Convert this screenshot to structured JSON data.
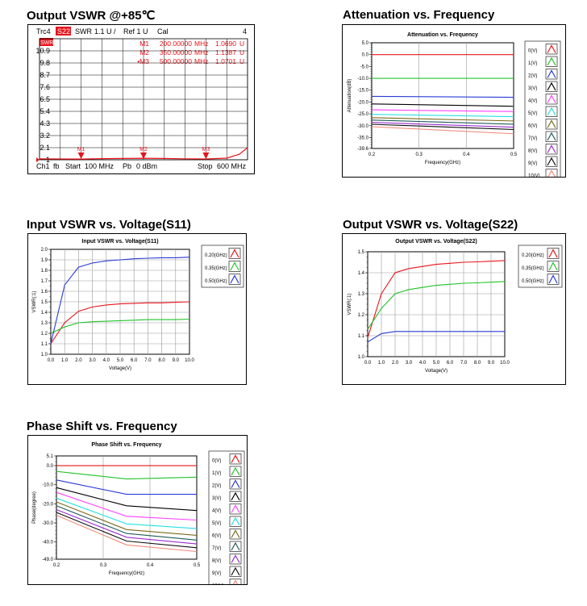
{
  "headings": {
    "vswr85": "Output VSWR @+85℃",
    "atten": "Attenuation vs. Frequency",
    "s11": "Input VSWR vs. Voltage(S11)",
    "s22": "Output VSWR vs. Voltage(S22)",
    "phase": "Phase Shift vs. Frequency"
  },
  "vna": {
    "trace": "Trc4",
    "param": "S22",
    "format": "SWR",
    "scale": "1.1 U /",
    "ref": "Ref 1 U",
    "cal": "Cal",
    "num": "4",
    "marker_table": [
      {
        "name": "M1",
        "freq": "200.00000",
        "unit": "MHz",
        "value": "1.0690",
        "vunit": "U"
      },
      {
        "name": "M2",
        "freq": "350.00000",
        "unit": "MHz",
        "value": "1.1387",
        "vunit": "U"
      },
      {
        "name": "•M3",
        "freq": "500.00000",
        "unit": "MHz",
        "value": "1.0701",
        "vunit": "U"
      }
    ],
    "ref_badge": "SWR",
    "footer": {
      "ch": "Ch1",
      "fb": "fb",
      "start": "Start",
      "start_val": "100 MHz",
      "pb": "Pb",
      "pb_val": "0 dBm",
      "stop": "Stop",
      "stop_val": "600 MHz"
    }
  },
  "chart_data": [
    {
      "id": "vswr85",
      "type": "line",
      "title": "",
      "xlabel": "",
      "ylabel": "",
      "xlim": [
        100,
        600
      ],
      "ylim": [
        1.0,
        12.0
      ],
      "yticks": [
        "10.9",
        "9.8",
        "8.7",
        "7.6",
        "6.5",
        "5.4",
        "4.3",
        "3.2",
        "2.1",
        "1"
      ],
      "ytick_values": [
        10.9,
        9.8,
        8.7,
        7.6,
        6.5,
        5.4,
        4.3,
        3.2,
        2.1,
        1.0
      ],
      "series": [
        {
          "color": "#e8141b",
          "x": [
            100,
            150,
            200,
            250,
            300,
            350,
            400,
            450,
            500,
            550,
            580,
            600
          ],
          "y": [
            1.08,
            1.07,
            1.069,
            1.1,
            1.12,
            1.139,
            1.12,
            1.09,
            1.07,
            1.15,
            1.5,
            2.1
          ]
        }
      ],
      "markers": [
        {
          "label": "M1",
          "x": 200
        },
        {
          "label": "M2",
          "x": 350
        },
        {
          "label": "M3",
          "x": 500
        }
      ]
    },
    {
      "id": "atten",
      "type": "line",
      "title": "Attenuation vs. Frequency",
      "xlabel": "Frequency(GHz)",
      "ylabel": "Attenuation(dB)",
      "xlim": [
        0.2,
        0.5
      ],
      "ylim": [
        -39.6,
        5.0
      ],
      "xticks": [
        0.2,
        0.3,
        0.4,
        0.5
      ],
      "xtick_labels": [
        "0.2",
        "0.3",
        "0.4",
        "0.5"
      ],
      "yticks": [
        5.0,
        0.0,
        -5.0,
        -10.0,
        -15.0,
        -20.0,
        -25.0,
        -30.0,
        -35.0,
        -39.6
      ],
      "ytick_labels": [
        "5.0",
        "0.0",
        "-5.0",
        "-10.0",
        "-15.0",
        "-20.0",
        "-25.0",
        "-30.0",
        "-35.0",
        "-39.6"
      ],
      "series": [
        {
          "name": "0(V)",
          "color": "#e8141b",
          "x": [
            0.2,
            0.5
          ],
          "y": [
            0.0,
            0.0
          ]
        },
        {
          "name": "1(V)",
          "color": "#22c32b",
          "x": [
            0.2,
            0.5
          ],
          "y": [
            -10.0,
            -10.0
          ]
        },
        {
          "name": "2(V)",
          "color": "#2a3ad8",
          "x": [
            0.2,
            0.5
          ],
          "y": [
            -17.6,
            -18.0
          ]
        },
        {
          "name": "3(V)",
          "color": "#000000",
          "x": [
            0.2,
            0.5
          ],
          "y": [
            -20.8,
            -21.8
          ]
        },
        {
          "name": "4(V)",
          "color": "#ff40ff",
          "x": [
            0.2,
            0.5
          ],
          "y": [
            -23.3,
            -24.0
          ]
        },
        {
          "name": "5(V)",
          "color": "#27e0e0",
          "x": [
            0.2,
            0.5
          ],
          "y": [
            -25.2,
            -26.2
          ]
        },
        {
          "name": "6(V)",
          "color": "#7a6a1c",
          "x": [
            0.2,
            0.5
          ],
          "y": [
            -26.6,
            -28.0
          ]
        },
        {
          "name": "7(V)",
          "color": "#245a5a",
          "x": [
            0.2,
            0.5
          ],
          "y": [
            -27.6,
            -29.4
          ]
        },
        {
          "name": "8(V)",
          "color": "#9a2cd0",
          "x": [
            0.2,
            0.5
          ],
          "y": [
            -28.6,
            -30.6
          ]
        },
        {
          "name": "9(V)",
          "color": "#101010",
          "x": [
            0.2,
            0.5
          ],
          "y": [
            -29.4,
            -31.6
          ]
        },
        {
          "name": "10(V)",
          "color": "#f08a7a",
          "x": [
            0.2,
            0.5
          ],
          "y": [
            -30.4,
            -33.4
          ]
        }
      ]
    },
    {
      "id": "s11",
      "type": "line",
      "title": "Input VSWR vs. Voltage(S11)",
      "xlabel": "Voltage(V)",
      "ylabel": "VSWR(:1)",
      "xlim": [
        0,
        10
      ],
      "ylim": [
        1.0,
        2.0
      ],
      "xticks": [
        0,
        1,
        2,
        3,
        4,
        5,
        6,
        7,
        8,
        9,
        10
      ],
      "xtick_labels": [
        "0.0",
        "1.0",
        "2.0",
        "3.0",
        "4.0",
        "5.0",
        "6.0",
        "7.0",
        "8.0",
        "9.0",
        "10.0"
      ],
      "yticks": [
        1.0,
        1.1,
        1.2,
        1.3,
        1.4,
        1.5,
        1.6,
        1.7,
        1.8,
        1.9,
        2.0
      ],
      "ytick_labels": [
        "1.0",
        "1.1",
        "1.2",
        "1.3",
        "1.4",
        "1.5",
        "1.6",
        "1.7",
        "1.8",
        "1.9",
        "2.0"
      ],
      "series": [
        {
          "name": "0.20(GHz)",
          "color": "#e8141b",
          "x": [
            0,
            1,
            2,
            3,
            4,
            5,
            6,
            7,
            8,
            9,
            10
          ],
          "y": [
            1.1,
            1.3,
            1.41,
            1.45,
            1.47,
            1.48,
            1.485,
            1.49,
            1.49,
            1.495,
            1.5
          ]
        },
        {
          "name": "0.35(GHz)",
          "color": "#22c32b",
          "x": [
            0,
            1,
            2,
            3,
            4,
            5,
            6,
            7,
            8,
            9,
            10
          ],
          "y": [
            1.2,
            1.26,
            1.3,
            1.31,
            1.315,
            1.32,
            1.325,
            1.33,
            1.33,
            1.33,
            1.335
          ]
        },
        {
          "name": "0.50(GHz)",
          "color": "#2a3ad8",
          "x": [
            0,
            1,
            2,
            3,
            4,
            5,
            6,
            7,
            8,
            9,
            10
          ],
          "y": [
            1.1,
            1.66,
            1.83,
            1.87,
            1.89,
            1.9,
            1.91,
            1.915,
            1.92,
            1.92,
            1.925
          ]
        }
      ]
    },
    {
      "id": "s22",
      "type": "line",
      "title": "Output VSWR vs. Voltage(S22)",
      "xlabel": "Voltage(V)",
      "ylabel": "VSWR(:1)",
      "xlim": [
        0,
        10
      ],
      "ylim": [
        1.0,
        1.5
      ],
      "xticks": [
        0,
        1,
        2,
        3,
        4,
        5,
        6,
        7,
        8,
        9,
        10
      ],
      "xtick_labels": [
        "0.0",
        "1.0",
        "2.0",
        "3.0",
        "4.0",
        "5.0",
        "6.0",
        "7.0",
        "8.0",
        "9.0",
        "10.0"
      ],
      "yticks": [
        1.0,
        1.1,
        1.2,
        1.3,
        1.4,
        1.5
      ],
      "ytick_labels": [
        "1.0",
        "1.1",
        "1.2",
        "1.3",
        "1.4",
        "1.5"
      ],
      "series": [
        {
          "name": "0.20(GHz)",
          "color": "#e8141b",
          "x": [
            0,
            1,
            2,
            3,
            4,
            5,
            6,
            7,
            8,
            9,
            10
          ],
          "y": [
            1.09,
            1.3,
            1.4,
            1.42,
            1.43,
            1.44,
            1.445,
            1.45,
            1.452,
            1.455,
            1.458
          ]
        },
        {
          "name": "0.35(GHz)",
          "color": "#22c32b",
          "x": [
            0,
            1,
            2,
            3,
            4,
            5,
            6,
            7,
            8,
            9,
            10
          ],
          "y": [
            1.13,
            1.23,
            1.3,
            1.32,
            1.33,
            1.34,
            1.345,
            1.35,
            1.352,
            1.355,
            1.358
          ]
        },
        {
          "name": "0.50(GHz)",
          "color": "#2a3ad8",
          "x": [
            0,
            1,
            2,
            3,
            4,
            5,
            6,
            7,
            8,
            9,
            10
          ],
          "y": [
            1.07,
            1.11,
            1.12,
            1.12,
            1.12,
            1.12,
            1.12,
            1.12,
            1.12,
            1.12,
            1.12
          ]
        }
      ]
    },
    {
      "id": "phase",
      "type": "line",
      "title": "Phase Shift vs. Frequency",
      "xlabel": "Frequency(GHz)",
      "ylabel": "Phase(degree)",
      "xlim": [
        0.2,
        0.5
      ],
      "ylim": [
        -49.0,
        5.1
      ],
      "xticks": [
        0.2,
        0.3,
        0.4,
        0.5
      ],
      "xtick_labels": [
        "0.2",
        "0.3",
        "0.4",
        "0.5"
      ],
      "yticks": [
        5.1,
        0.0,
        -10.0,
        -20.0,
        -30.0,
        -40.0,
        -49.0
      ],
      "ytick_labels": [
        "5.1",
        "0.0",
        "-10.0",
        "-20.0",
        "-30.0",
        "-40.0",
        "-49.0"
      ],
      "series": [
        {
          "name": "0(V)",
          "color": "#e8141b",
          "x": [
            0.2,
            0.35,
            0.5
          ],
          "y": [
            0.0,
            0.0,
            0.0
          ]
        },
        {
          "name": "1(V)",
          "color": "#22c32b",
          "x": [
            0.2,
            0.35,
            0.5
          ],
          "y": [
            -3.0,
            -7.0,
            -6.0
          ]
        },
        {
          "name": "2(V)",
          "color": "#2a3ad8",
          "x": [
            0.2,
            0.35,
            0.5
          ],
          "y": [
            -7.5,
            -15.0,
            -15.0
          ]
        },
        {
          "name": "3(V)",
          "color": "#000000",
          "x": [
            0.2,
            0.35,
            0.5
          ],
          "y": [
            -11.5,
            -21.0,
            -23.5
          ]
        },
        {
          "name": "4(V)",
          "color": "#ff40ff",
          "x": [
            0.2,
            0.35,
            0.5
          ],
          "y": [
            -14.0,
            -26.5,
            -28.5
          ]
        },
        {
          "name": "5(V)",
          "color": "#27e0e0",
          "x": [
            0.2,
            0.35,
            0.5
          ],
          "y": [
            -17.0,
            -30.5,
            -33.0
          ]
        },
        {
          "name": "6(V)",
          "color": "#7a6a1c",
          "x": [
            0.2,
            0.35,
            0.5
          ],
          "y": [
            -19.0,
            -33.5,
            -36.5
          ]
        },
        {
          "name": "7(V)",
          "color": "#245a5a",
          "x": [
            0.2,
            0.35,
            0.5
          ],
          "y": [
            -21.0,
            -35.5,
            -39.0
          ]
        },
        {
          "name": "8(V)",
          "color": "#9a2cd0",
          "x": [
            0.2,
            0.35,
            0.5
          ],
          "y": [
            -23.0,
            -37.5,
            -41.0
          ]
        },
        {
          "name": "9(V)",
          "color": "#101010",
          "x": [
            0.2,
            0.35,
            0.5
          ],
          "y": [
            -24.5,
            -39.5,
            -43.0
          ]
        },
        {
          "name": "10(V)",
          "color": "#f08a7a",
          "x": [
            0.2,
            0.35,
            0.5
          ],
          "y": [
            -26.0,
            -41.5,
            -45.0
          ]
        }
      ]
    }
  ]
}
